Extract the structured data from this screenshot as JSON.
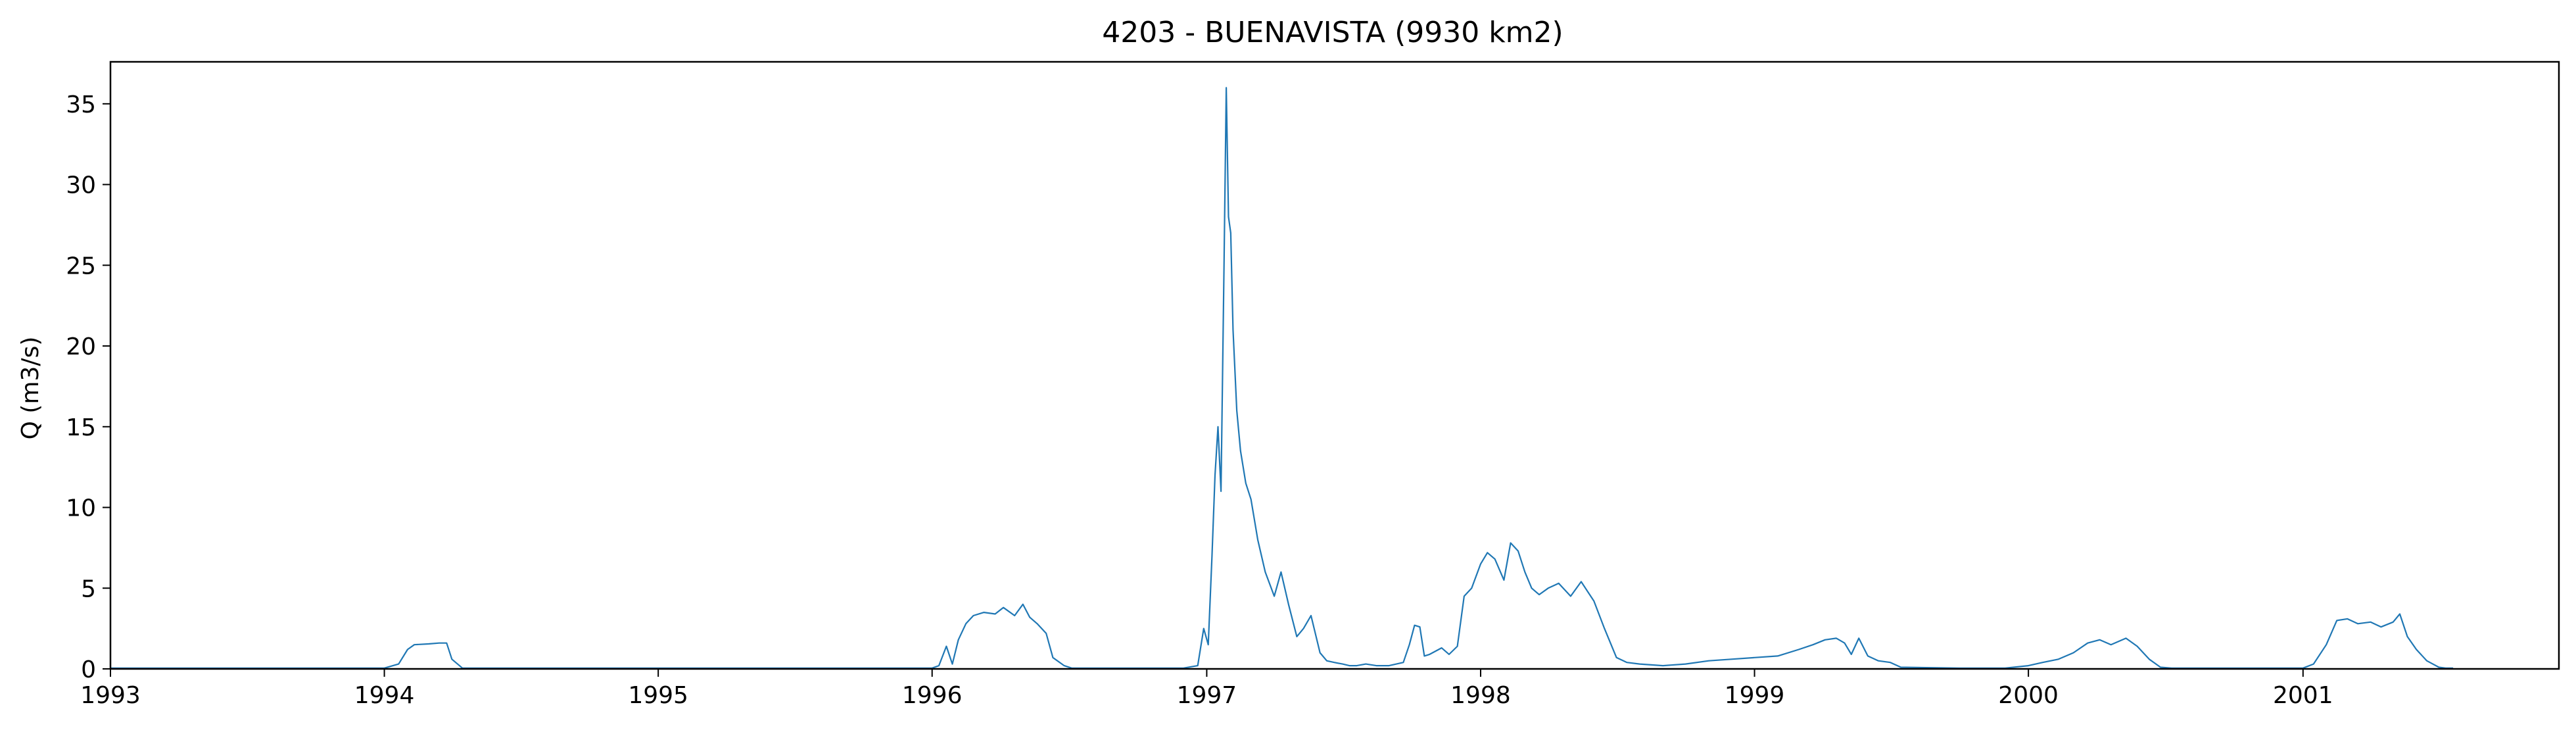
{
  "chart_data": {
    "type": "line",
    "title": "4203 - BUENAVISTA (9930 km2)",
    "xlabel": "",
    "ylabel": "Q (m3/s)",
    "xlim": [
      "1993-01-01",
      "2001-12-08"
    ],
    "ylim": [
      0,
      37.6
    ],
    "x_ticks": [
      "1993",
      "1994",
      "1995",
      "1996",
      "1997",
      "1998",
      "1999",
      "2000",
      "2001"
    ],
    "y_ticks": [
      "0",
      "5",
      "10",
      "15",
      "20",
      "25",
      "30",
      "35"
    ],
    "grid": false,
    "legend": "none",
    "colors": {
      "series": "#1f77b4",
      "frame": "#000000",
      "background": "#ffffff"
    },
    "series": [
      {
        "x": [
          "1993-01-01",
          "1993-06-01",
          "1994-01-01",
          "1994-01-20",
          "1994-02-01",
          "1994-02-10",
          "1994-03-01",
          "1994-03-15",
          "1994-03-25",
          "1994-04-01",
          "1994-04-15",
          "1995-01-01",
          "1996-01-01",
          "1996-01-10",
          "1996-01-20",
          "1996-01-28",
          "1996-02-05",
          "1996-02-15",
          "1996-02-25",
          "1996-03-10",
          "1996-03-25",
          "1996-04-05",
          "1996-04-20",
          "1996-05-01",
          "1996-05-10",
          "1996-05-20",
          "1996-06-01",
          "1996-06-10",
          "1996-06-25",
          "1996-07-05",
          "1996-07-15",
          "1996-12-01",
          "1996-12-20",
          "1996-12-28",
          "1997-01-03",
          "1997-01-08",
          "1997-01-12",
          "1997-01-16",
          "1997-01-20",
          "1997-01-24",
          "1997-01-27",
          "1997-01-30",
          "1997-02-02",
          "1997-02-05",
          "1997-02-10",
          "1997-02-15",
          "1997-02-22",
          "1997-03-01",
          "1997-03-10",
          "1997-03-20",
          "1997-04-01",
          "1997-04-10",
          "1997-04-20",
          "1997-05-01",
          "1997-05-10",
          "1997-05-20",
          "1997-06-01",
          "1997-06-10",
          "1997-06-20",
          "1997-07-01",
          "1997-07-10",
          "1997-07-20",
          "1997-08-01",
          "1997-08-15",
          "1997-09-01",
          "1997-09-20",
          "1997-09-28",
          "1997-10-05",
          "1997-10-12",
          "1997-10-18",
          "1997-10-25",
          "1997-11-10",
          "1997-11-20",
          "1997-12-01",
          "1997-12-10",
          "1997-12-20",
          "1998-01-01",
          "1998-01-10",
          "1998-01-20",
          "1998-02-01",
          "1998-02-10",
          "1998-02-20",
          "1998-03-01",
          "1998-03-10",
          "1998-03-20",
          "1998-04-01",
          "1998-04-15",
          "1998-05-01",
          "1998-05-15",
          "1998-06-01",
          "1998-06-15",
          "1998-07-01",
          "1998-07-15",
          "1998-08-01",
          "1998-09-01",
          "1998-10-01",
          "1998-11-01",
          "1998-12-01",
          "1999-01-01",
          "1999-02-01",
          "1999-03-01",
          "1999-03-20",
          "1999-04-05",
          "1999-04-20",
          "1999-05-01",
          "1999-05-10",
          "1999-05-20",
          "1999-06-01",
          "1999-06-15",
          "1999-07-01",
          "1999-07-15",
          "1999-10-01",
          "1999-12-01",
          "2000-01-01",
          "2000-01-20",
          "2000-02-10",
          "2000-03-01",
          "2000-03-20",
          "2000-04-05",
          "2000-04-20",
          "2000-05-10",
          "2000-05-25",
          "2000-06-10",
          "2000-06-25",
          "2000-07-10",
          "2000-12-01",
          "2001-01-01",
          "2001-01-15",
          "2001-02-01",
          "2001-02-15",
          "2001-03-01",
          "2001-03-15",
          "2001-04-01",
          "2001-04-15",
          "2001-05-01",
          "2001-05-10",
          "2001-05-20",
          "2001-06-01",
          "2001-06-15",
          "2001-07-01",
          "2001-07-10",
          "2001-07-20"
        ],
        "y": [
          0.05,
          0.05,
          0.05,
          0.3,
          1.2,
          1.5,
          1.55,
          1.6,
          1.6,
          0.6,
          0.05,
          0.05,
          0.05,
          0.2,
          1.4,
          0.3,
          1.8,
          2.8,
          3.3,
          3.5,
          3.4,
          3.8,
          3.3,
          4.0,
          3.2,
          2.8,
          2.2,
          0.7,
          0.2,
          0.05,
          0.05,
          0.05,
          0.2,
          2.5,
          1.5,
          7.0,
          12.0,
          15.0,
          11.0,
          25.0,
          36.0,
          28.0,
          27.0,
          21.0,
          16.0,
          13.5,
          11.5,
          10.5,
          8.0,
          6.0,
          4.5,
          6.0,
          4.0,
          2.0,
          2.5,
          3.3,
          1.0,
          0.5,
          0.4,
          0.3,
          0.2,
          0.2,
          0.3,
          0.2,
          0.2,
          0.4,
          1.5,
          2.7,
          2.6,
          0.8,
          0.9,
          1.3,
          0.9,
          1.4,
          4.5,
          5.0,
          6.5,
          7.2,
          6.8,
          5.5,
          7.8,
          7.3,
          6.0,
          5.0,
          4.6,
          5.0,
          5.3,
          4.5,
          5.4,
          4.2,
          2.5,
          0.7,
          0.4,
          0.3,
          0.2,
          0.3,
          0.5,
          0.6,
          0.7,
          0.8,
          1.2,
          1.5,
          1.8,
          1.9,
          1.6,
          0.9,
          1.9,
          0.8,
          0.5,
          0.4,
          0.1,
          0.05,
          0.05,
          0.2,
          0.4,
          0.6,
          1.0,
          1.6,
          1.8,
          1.5,
          1.9,
          1.4,
          0.6,
          0.1,
          0.05,
          0.05,
          0.05,
          0.3,
          1.5,
          3.0,
          3.1,
          2.8,
          2.9,
          2.6,
          2.9,
          3.4,
          2.0,
          1.2,
          0.5,
          0.1,
          0.05,
          0.05
        ]
      }
    ]
  }
}
